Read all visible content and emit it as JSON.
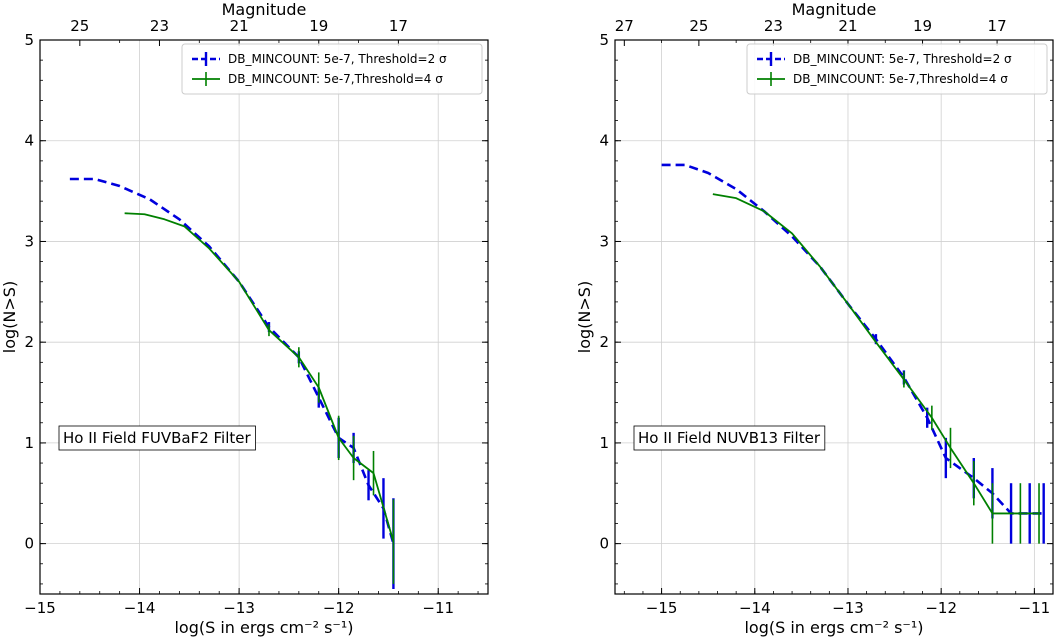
{
  "chart_data": [
    {
      "type": "line",
      "xlabel": "log(S in ergs cm⁻² s⁻¹)",
      "ylabel": "log(N>S)",
      "top_label": "Magnitude",
      "xlim": [
        -15,
        -10.5
      ],
      "ylim": [
        -0.5,
        5
      ],
      "x_ticks": [
        "−15",
        "−14",
        "−13",
        "−12",
        "−11"
      ],
      "x_tick_values": [
        -15,
        -14,
        -13,
        -12,
        -11
      ],
      "y_ticks": [
        "0",
        "1",
        "2",
        "3",
        "4",
        "5"
      ],
      "y_tick_values": [
        0,
        1,
        2,
        3,
        4,
        5
      ],
      "top_ticks": [
        "25",
        "23",
        "21",
        "19",
        "17"
      ],
      "top_tick_values": [
        -14.6,
        -13.8,
        -13.0,
        -12.2,
        -11.4
      ],
      "grid": true,
      "legend_position": "top-right",
      "annotation": "Ho II Field FUVBaF2 Filter",
      "series": [
        {
          "name": "DB_MINCOUNT: 5e-7, Threshold=2 σ",
          "color": "#0000dd",
          "style": "dashed",
          "x": [
            -14.7,
            -14.45,
            -14.2,
            -13.9,
            -13.6,
            -13.3,
            -13.0,
            -12.7,
            -12.4,
            -12.2,
            -12.0,
            -11.85,
            -11.7,
            -11.55,
            -11.45
          ],
          "y": [
            3.62,
            3.62,
            3.55,
            3.42,
            3.22,
            2.95,
            2.6,
            2.15,
            1.85,
            1.45,
            1.05,
            0.95,
            0.58,
            0.35,
            0.0
          ],
          "err": [
            0,
            0,
            0,
            0,
            0,
            0,
            0,
            0.05,
            0.06,
            0.1,
            0.2,
            0.15,
            0.15,
            0.3,
            0.45
          ]
        },
        {
          "name": "DB_MINCOUNT: 5e-7,Threshold=4 σ",
          "color": "#008000",
          "style": "solid",
          "x": [
            -14.15,
            -13.95,
            -13.75,
            -13.55,
            -13.3,
            -13.0,
            -12.7,
            -12.4,
            -12.2,
            -12.0,
            -11.85,
            -11.65,
            -11.45
          ],
          "y": [
            3.28,
            3.27,
            3.22,
            3.15,
            2.93,
            2.6,
            2.12,
            1.85,
            1.55,
            1.05,
            0.85,
            0.7,
            0.02
          ],
          "err": [
            0,
            0,
            0,
            0,
            0,
            0,
            0.06,
            0.1,
            0.15,
            0.22,
            0.22,
            0.22,
            0.42
          ]
        }
      ]
    },
    {
      "type": "line",
      "xlabel": "log(S in ergs cm⁻² s⁻¹)",
      "ylabel": "log(N>S)",
      "top_label": "Magnitude",
      "xlim": [
        -15.5,
        -10.8
      ],
      "ylim": [
        -0.5,
        5
      ],
      "x_ticks": [
        "−15",
        "−14",
        "−13",
        "−12",
        "−11"
      ],
      "x_tick_values": [
        -15,
        -14,
        -13,
        -12,
        -11
      ],
      "y_ticks": [
        "0",
        "1",
        "2",
        "3",
        "4",
        "5"
      ],
      "y_tick_values": [
        0,
        1,
        2,
        3,
        4,
        5
      ],
      "top_ticks": [
        "27",
        "25",
        "23",
        "21",
        "19",
        "17"
      ],
      "top_tick_values": [
        -15.4,
        -14.6,
        -13.8,
        -13.0,
        -12.2,
        -11.4
      ],
      "grid": true,
      "legend_position": "top-right",
      "annotation": "Ho II Field NUVB13 Filter",
      "series": [
        {
          "name": "DB_MINCOUNT: 5e-7, Threshold=2 σ",
          "color": "#0000dd",
          "style": "dashed",
          "x": [
            -15.0,
            -14.75,
            -14.5,
            -14.2,
            -13.9,
            -13.6,
            -13.3,
            -13.0,
            -12.7,
            -12.4,
            -12.15,
            -11.95,
            -11.65,
            -11.45,
            -11.25,
            -11.05,
            -10.9
          ],
          "y": [
            3.76,
            3.76,
            3.68,
            3.52,
            3.3,
            3.05,
            2.75,
            2.38,
            2.03,
            1.65,
            1.25,
            0.85,
            0.65,
            0.5,
            0.3,
            0.3,
            0.3
          ],
          "err": [
            0,
            0,
            0,
            0,
            0,
            0,
            0,
            0,
            0.05,
            0.07,
            0.1,
            0.2,
            0.2,
            0.25,
            0.3,
            0.3,
            0.3
          ]
        },
        {
          "name": "DB_MINCOUNT: 5e-7,Threshold=4 σ",
          "color": "#008000",
          "style": "solid",
          "x": [
            -14.45,
            -14.2,
            -13.9,
            -13.6,
            -13.3,
            -13.0,
            -12.7,
            -12.4,
            -12.1,
            -11.9,
            -11.65,
            -11.45,
            -11.15,
            -10.95
          ],
          "y": [
            3.47,
            3.43,
            3.3,
            3.08,
            2.75,
            2.38,
            2.0,
            1.63,
            1.25,
            0.95,
            0.6,
            0.3,
            0.3,
            0.3
          ],
          "err": [
            0,
            0,
            0,
            0,
            0,
            0,
            0,
            0.08,
            0.12,
            0.2,
            0.22,
            0.3,
            0.3,
            0.3
          ]
        }
      ]
    }
  ]
}
